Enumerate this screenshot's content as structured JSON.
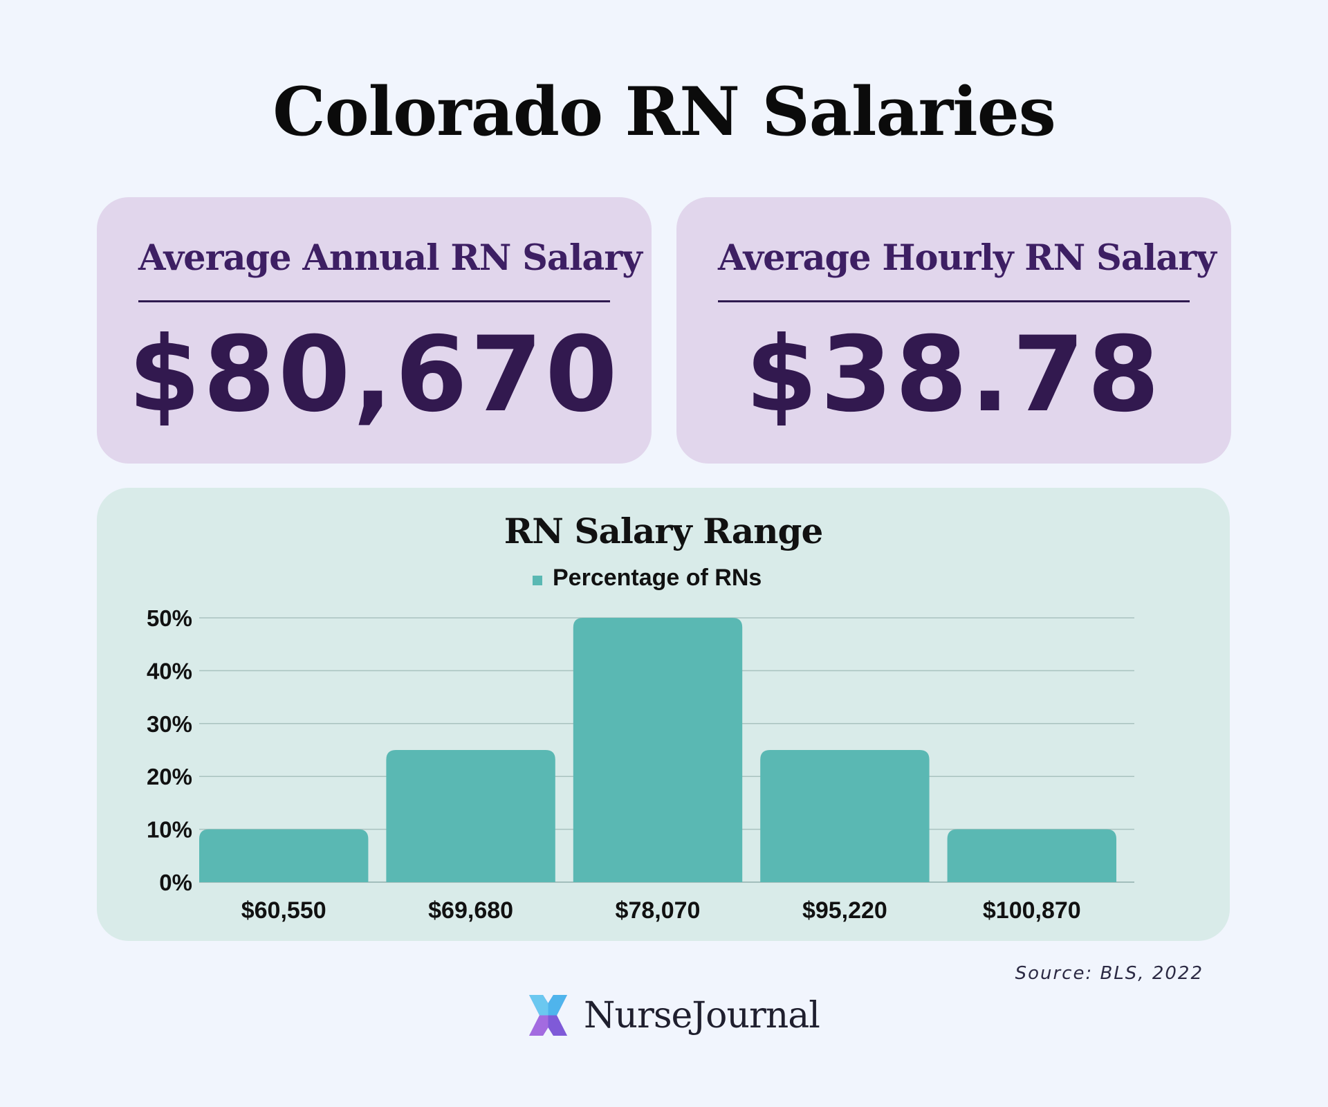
{
  "title": "Colorado RN Salaries",
  "cards": {
    "annual": {
      "label": "Average Annual RN Salary",
      "value": "$80,670"
    },
    "hourly": {
      "label": "Average Hourly RN Salary",
      "value": "$38.78"
    }
  },
  "chart_data": {
    "type": "bar",
    "title": "RN Salary Range",
    "categories": [
      "$60,550",
      "$69,680",
      "$78,070",
      "$95,220",
      "$100,870"
    ],
    "series": [
      {
        "name": "Percentage of RNs",
        "values": [
          10,
          25,
          50,
          25,
          10
        ],
        "color": "#5ab8b3"
      }
    ],
    "ylim": [
      0,
      50
    ],
    "yticks": [
      "0%",
      "10%",
      "20%",
      "30%",
      "40%",
      "50%"
    ],
    "grid": true,
    "legend": "top-center"
  },
  "source": "Source: BLS, 2022",
  "brand": {
    "name": "NurseJournal",
    "icon": "nursejournal-logo-icon"
  }
}
